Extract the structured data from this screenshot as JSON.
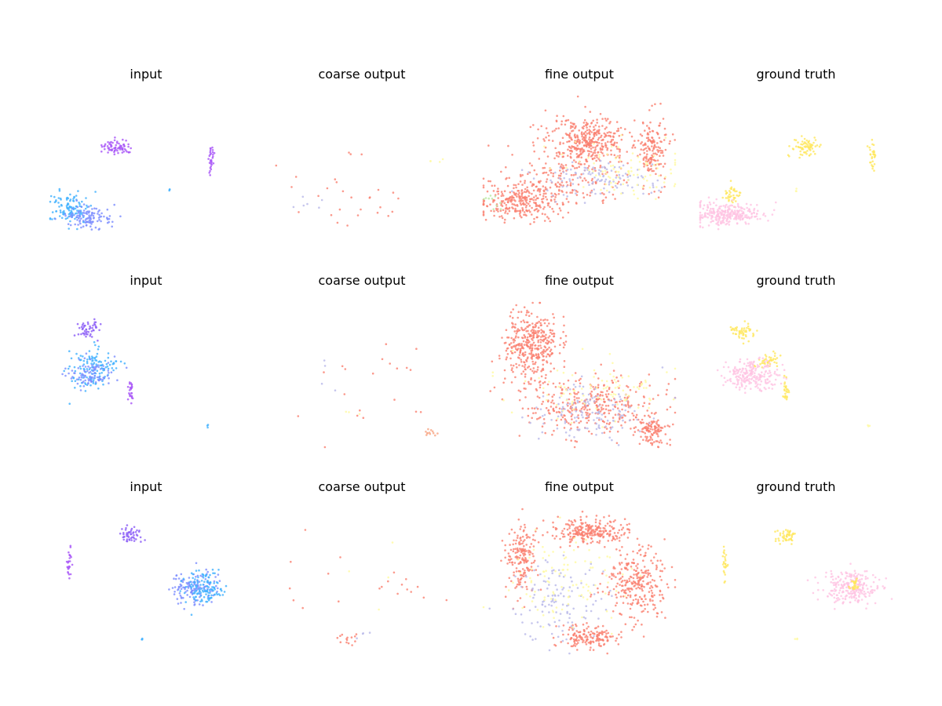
{
  "figure": {
    "rows": [
      {
        "panels": [
          {
            "key": "r0c0",
            "title": "input"
          },
          {
            "key": "r0c1",
            "title": "coarse output"
          },
          {
            "key": "r0c2",
            "title": "fine output"
          },
          {
            "key": "r0c3",
            "title": "ground truth"
          }
        ]
      },
      {
        "panels": [
          {
            "key": "r1c0",
            "title": "input"
          },
          {
            "key": "r1c1",
            "title": "coarse output"
          },
          {
            "key": "r1c2",
            "title": "fine output"
          },
          {
            "key": "r1c3",
            "title": "ground truth"
          }
        ]
      },
      {
        "panels": [
          {
            "key": "r2c0",
            "title": "input"
          },
          {
            "key": "r2c1",
            "title": "coarse output"
          },
          {
            "key": "r2c2",
            "title": "fine output"
          },
          {
            "key": "r2c3",
            "title": "ground truth"
          }
        ]
      }
    ]
  },
  "colors": {
    "purple": "#a855f7",
    "violet": "#8b5cf6",
    "blue": "#3fb0ff",
    "periwinkle": "#7b8cff",
    "salmon": "#fa7f6f",
    "peach": "#f7a583",
    "lavender": "#b8b8e8",
    "pale_yellow": "#fffaa0",
    "yellow": "#ffe75c",
    "pink": "#ffc3e2",
    "green": "#b8e8a0"
  },
  "chart_data": [
    {
      "type": "scatter",
      "title": "input",
      "row": 1,
      "col": 1,
      "xlabel": "",
      "ylabel": "",
      "grid": false,
      "axes": "off",
      "clusters": [
        {
          "color": "purple",
          "cx": 0.35,
          "cy": 0.35,
          "sx": 0.04,
          "sy": 0.025,
          "n": 70
        },
        {
          "color": "purple",
          "cx": 0.84,
          "cy": 0.42,
          "sx": 0.008,
          "sy": 0.05,
          "n": 30
        },
        {
          "color": "blue",
          "cx": 0.1,
          "cy": 0.78,
          "sx": 0.05,
          "sy": 0.06,
          "n": 110
        },
        {
          "color": "periwinkle",
          "cx": 0.2,
          "cy": 0.84,
          "sx": 0.06,
          "sy": 0.035,
          "n": 110
        },
        {
          "color": "blue",
          "cx": 0.62,
          "cy": 0.64,
          "sx": 0.006,
          "sy": 0.006,
          "n": 3
        }
      ]
    },
    {
      "type": "scatter",
      "title": "coarse output",
      "row": 1,
      "col": 2,
      "xlabel": "",
      "ylabel": "",
      "grid": false,
      "axes": "off",
      "clusters": [
        {
          "color": "salmon",
          "cx": 0.45,
          "cy": 0.7,
          "sx": 0.2,
          "sy": 0.12,
          "n": 25
        },
        {
          "color": "salmon",
          "cx": 0.45,
          "cy": 0.4,
          "sx": 0.04,
          "sy": 0.01,
          "n": 3
        },
        {
          "color": "lavender",
          "cx": 0.2,
          "cy": 0.75,
          "sx": 0.1,
          "sy": 0.05,
          "n": 6
        },
        {
          "color": "pale_yellow",
          "cx": 0.9,
          "cy": 0.45,
          "sx": 0.02,
          "sy": 0.03,
          "n": 4
        }
      ]
    },
    {
      "type": "scatter",
      "title": "fine output",
      "row": 1,
      "col": 3,
      "xlabel": "",
      "ylabel": "",
      "grid": false,
      "axes": "off",
      "clusters": [
        {
          "color": "salmon",
          "cx": 0.55,
          "cy": 0.3,
          "sx": 0.1,
          "sy": 0.08,
          "n": 350
        },
        {
          "color": "salmon",
          "cx": 0.18,
          "cy": 0.72,
          "sx": 0.1,
          "sy": 0.07,
          "n": 280
        },
        {
          "color": "salmon",
          "cx": 0.45,
          "cy": 0.55,
          "sx": 0.15,
          "sy": 0.12,
          "n": 200
        },
        {
          "color": "salmon",
          "cx": 0.88,
          "cy": 0.35,
          "sx": 0.04,
          "sy": 0.12,
          "n": 160
        },
        {
          "color": "lavender",
          "cx": 0.6,
          "cy": 0.58,
          "sx": 0.15,
          "sy": 0.06,
          "n": 110
        },
        {
          "color": "pale_yellow",
          "cx": 0.7,
          "cy": 0.5,
          "sx": 0.15,
          "sy": 0.1,
          "n": 90
        },
        {
          "color": "green",
          "cx": 0.05,
          "cy": 0.72,
          "sx": 0.02,
          "sy": 0.03,
          "n": 10
        }
      ]
    },
    {
      "type": "scatter",
      "title": "ground truth",
      "row": 1,
      "col": 4,
      "xlabel": "",
      "ylabel": "",
      "grid": false,
      "axes": "off",
      "clusters": [
        {
          "color": "yellow",
          "cx": 0.55,
          "cy": 0.35,
          "sx": 0.035,
          "sy": 0.035,
          "n": 70
        },
        {
          "color": "yellow",
          "cx": 0.9,
          "cy": 0.42,
          "sx": 0.008,
          "sy": 0.05,
          "n": 30
        },
        {
          "color": "yellow",
          "cx": 0.17,
          "cy": 0.68,
          "sx": 0.02,
          "sy": 0.04,
          "n": 40
        },
        {
          "color": "pink",
          "cx": 0.14,
          "cy": 0.82,
          "sx": 0.09,
          "sy": 0.04,
          "n": 280
        },
        {
          "color": "pale_yellow",
          "cx": 0.5,
          "cy": 0.65,
          "sx": 0.006,
          "sy": 0.006,
          "n": 3
        }
      ]
    },
    {
      "type": "scatter",
      "title": "input",
      "row": 2,
      "col": 1,
      "xlabel": "",
      "ylabel": "",
      "grid": false,
      "axes": "off",
      "clusters": [
        {
          "color": "violet",
          "cx": 0.2,
          "cy": 0.18,
          "sx": 0.03,
          "sy": 0.03,
          "n": 50
        },
        {
          "color": "blue",
          "cx": 0.22,
          "cy": 0.45,
          "sx": 0.06,
          "sy": 0.07,
          "n": 130
        },
        {
          "color": "periwinkle",
          "cx": 0.2,
          "cy": 0.5,
          "sx": 0.06,
          "sy": 0.05,
          "n": 90
        },
        {
          "color": "purple",
          "cx": 0.42,
          "cy": 0.6,
          "sx": 0.008,
          "sy": 0.05,
          "n": 25
        },
        {
          "color": "blue",
          "cx": 0.82,
          "cy": 0.85,
          "sx": 0.006,
          "sy": 0.004,
          "n": 3
        }
      ]
    },
    {
      "type": "scatter",
      "title": "coarse output",
      "row": 2,
      "col": 2,
      "xlabel": "",
      "ylabel": "",
      "grid": false,
      "axes": "off",
      "clusters": [
        {
          "color": "salmon",
          "cx": 0.5,
          "cy": 0.65,
          "sx": 0.18,
          "sy": 0.2,
          "n": 20
        },
        {
          "color": "peach",
          "cx": 0.85,
          "cy": 0.88,
          "sx": 0.03,
          "sy": 0.02,
          "n": 12
        },
        {
          "color": "lavender",
          "cx": 0.3,
          "cy": 0.5,
          "sx": 0.05,
          "sy": 0.1,
          "n": 4
        },
        {
          "color": "pale_yellow",
          "cx": 0.5,
          "cy": 0.75,
          "sx": 0.05,
          "sy": 0.05,
          "n": 3
        }
      ]
    },
    {
      "type": "scatter",
      "title": "fine output",
      "row": 2,
      "col": 3,
      "xlabel": "",
      "ylabel": "",
      "grid": false,
      "axes": "off",
      "clusters": [
        {
          "color": "salmon",
          "cx": 0.25,
          "cy": 0.3,
          "sx": 0.07,
          "sy": 0.12,
          "n": 380
        },
        {
          "color": "salmon",
          "cx": 0.55,
          "cy": 0.7,
          "sx": 0.18,
          "sy": 0.1,
          "n": 350
        },
        {
          "color": "salmon",
          "cx": 0.88,
          "cy": 0.88,
          "sx": 0.04,
          "sy": 0.05,
          "n": 120
        },
        {
          "color": "lavender",
          "cx": 0.55,
          "cy": 0.75,
          "sx": 0.15,
          "sy": 0.1,
          "n": 130
        },
        {
          "color": "pale_yellow",
          "cx": 0.6,
          "cy": 0.6,
          "sx": 0.2,
          "sy": 0.1,
          "n": 90
        }
      ]
    },
    {
      "type": "scatter",
      "title": "ground truth",
      "row": 2,
      "col": 4,
      "xlabel": "",
      "ylabel": "",
      "grid": false,
      "axes": "off",
      "clusters": [
        {
          "color": "yellow",
          "cx": 0.22,
          "cy": 0.2,
          "sx": 0.03,
          "sy": 0.03,
          "n": 50
        },
        {
          "color": "yellow",
          "cx": 0.35,
          "cy": 0.4,
          "sx": 0.03,
          "sy": 0.03,
          "n": 40
        },
        {
          "color": "pink",
          "cx": 0.27,
          "cy": 0.5,
          "sx": 0.07,
          "sy": 0.05,
          "n": 220
        },
        {
          "color": "yellow",
          "cx": 0.45,
          "cy": 0.6,
          "sx": 0.008,
          "sy": 0.04,
          "n": 25
        },
        {
          "color": "pale_yellow",
          "cx": 0.88,
          "cy": 0.85,
          "sx": 0.006,
          "sy": 0.004,
          "n": 3
        }
      ]
    },
    {
      "type": "scatter",
      "title": "input",
      "row": 3,
      "col": 1,
      "xlabel": "",
      "ylabel": "",
      "grid": false,
      "axes": "off",
      "clusters": [
        {
          "color": "violet",
          "cx": 0.42,
          "cy": 0.18,
          "sx": 0.03,
          "sy": 0.025,
          "n": 50
        },
        {
          "color": "purple",
          "cx": 0.1,
          "cy": 0.38,
          "sx": 0.008,
          "sy": 0.05,
          "n": 25
        },
        {
          "color": "periwinkle",
          "cx": 0.75,
          "cy": 0.55,
          "sx": 0.06,
          "sy": 0.06,
          "n": 130
        },
        {
          "color": "blue",
          "cx": 0.8,
          "cy": 0.55,
          "sx": 0.05,
          "sy": 0.06,
          "n": 120
        },
        {
          "color": "blue",
          "cx": 0.48,
          "cy": 0.9,
          "sx": 0.006,
          "sy": 0.004,
          "n": 3
        }
      ]
    },
    {
      "type": "scatter",
      "title": "coarse output",
      "row": 3,
      "col": 2,
      "xlabel": "",
      "ylabel": "",
      "grid": false,
      "axes": "off",
      "clusters": [
        {
          "color": "salmon",
          "cx": 0.7,
          "cy": 0.55,
          "sx": 0.1,
          "sy": 0.06,
          "n": 12
        },
        {
          "color": "salmon",
          "cx": 0.42,
          "cy": 0.9,
          "sx": 0.04,
          "sy": 0.02,
          "n": 14
        },
        {
          "color": "salmon",
          "cx": 0.25,
          "cy": 0.5,
          "sx": 0.1,
          "sy": 0.2,
          "n": 8
        },
        {
          "color": "lavender",
          "cx": 0.5,
          "cy": 0.85,
          "sx": 0.05,
          "sy": 0.05,
          "n": 4
        },
        {
          "color": "pale_yellow",
          "cx": 0.6,
          "cy": 0.7,
          "sx": 0.15,
          "sy": 0.2,
          "n": 4
        }
      ]
    },
    {
      "type": "scatter",
      "title": "fine output",
      "row": 3,
      "col": 3,
      "xlabel": "",
      "ylabel": "",
      "grid": false,
      "axes": "off",
      "clusters": [
        {
          "color": "salmon",
          "cx": 0.55,
          "cy": 0.15,
          "sx": 0.1,
          "sy": 0.04,
          "n": 250
        },
        {
          "color": "salmon",
          "cx": 0.2,
          "cy": 0.35,
          "sx": 0.04,
          "sy": 0.12,
          "n": 180
        },
        {
          "color": "salmon",
          "cx": 0.8,
          "cy": 0.5,
          "sx": 0.08,
          "sy": 0.12,
          "n": 280
        },
        {
          "color": "salmon",
          "cx": 0.55,
          "cy": 0.88,
          "sx": 0.08,
          "sy": 0.04,
          "n": 160
        },
        {
          "color": "lavender",
          "cx": 0.4,
          "cy": 0.65,
          "sx": 0.12,
          "sy": 0.15,
          "n": 120
        },
        {
          "color": "pale_yellow",
          "cx": 0.45,
          "cy": 0.5,
          "sx": 0.15,
          "sy": 0.15,
          "n": 100
        }
      ]
    },
    {
      "type": "scatter",
      "title": "ground truth",
      "row": 3,
      "col": 4,
      "xlabel": "",
      "ylabel": "",
      "grid": false,
      "axes": "off",
      "clusters": [
        {
          "color": "yellow",
          "cx": 0.45,
          "cy": 0.18,
          "sx": 0.03,
          "sy": 0.025,
          "n": 50
        },
        {
          "color": "yellow",
          "cx": 0.13,
          "cy": 0.38,
          "sx": 0.008,
          "sy": 0.05,
          "n": 25
        },
        {
          "color": "pink",
          "cx": 0.78,
          "cy": 0.55,
          "sx": 0.07,
          "sy": 0.06,
          "n": 240
        },
        {
          "color": "yellow",
          "cx": 0.8,
          "cy": 0.52,
          "sx": 0.012,
          "sy": 0.03,
          "n": 25
        },
        {
          "color": "pale_yellow",
          "cx": 0.5,
          "cy": 0.9,
          "sx": 0.006,
          "sy": 0.004,
          "n": 3
        }
      ]
    }
  ]
}
